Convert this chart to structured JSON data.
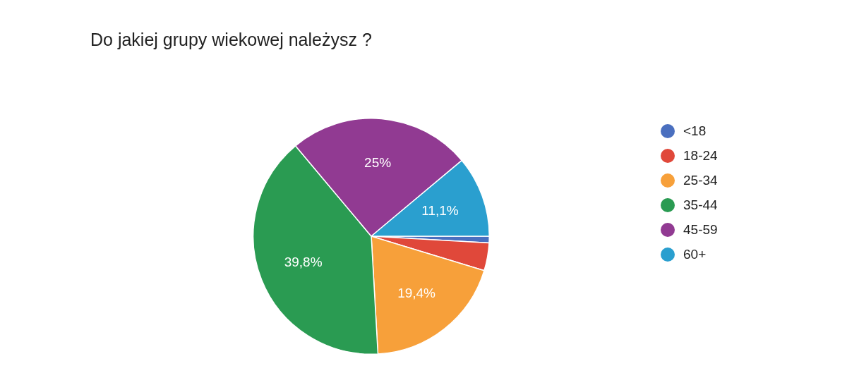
{
  "chart_data": {
    "type": "pie",
    "title": "Do jakiej grupy wiekowej należysz ?",
    "categories": [
      "<18",
      "18-24",
      "25-34",
      "35-44",
      "45-59",
      "60+"
    ],
    "values": [
      0.9,
      3.8,
      19.4,
      39.8,
      25,
      11.1
    ],
    "colors": [
      "#4a6fbf",
      "#e0483a",
      "#f7a03a",
      "#2a9b52",
      "#913a92",
      "#2a9fcf"
    ],
    "value_labels": [
      null,
      null,
      "19,4%",
      "39,8%",
      "25%",
      "11,1%"
    ],
    "legend": "right"
  }
}
